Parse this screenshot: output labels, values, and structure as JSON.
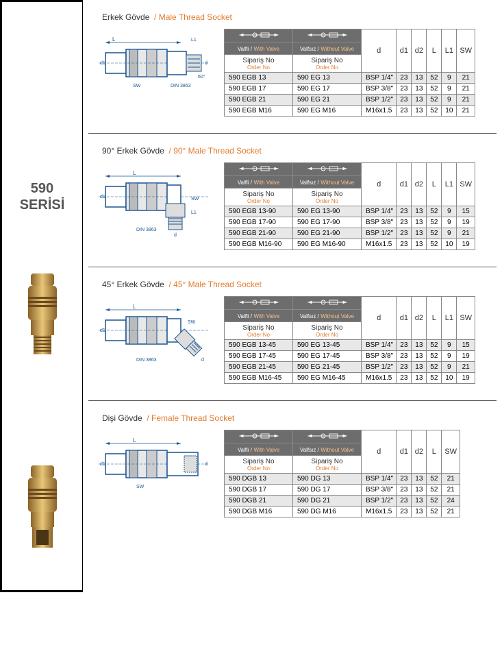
{
  "series": {
    "line1": "590",
    "line2": "SERİSİ"
  },
  "labels": {
    "valfli_tr": "Valfli /",
    "valfli_en": "With Valve",
    "valfsiz_tr": "Valfsız /",
    "valfsiz_en": "Without Valve",
    "siparis": "Sipariş No",
    "orderno": "Order No"
  },
  "sections": [
    {
      "title_tr": "Erkek Gövde",
      "title_en": "/ Male Thread Socket",
      "cols": [
        "d",
        "d1",
        "d2",
        "L",
        "L1",
        "SW"
      ],
      "rows": [
        {
          "a": "590 EGB 13",
          "b": "590 EG 13",
          "v": [
            "BSP 1/4''",
            "23",
            "13",
            "52",
            "9",
            "21"
          ],
          "shade": true
        },
        {
          "a": "590 EGB 17",
          "b": "590 EG 17",
          "v": [
            "BSP 3/8''",
            "23",
            "13",
            "52",
            "9",
            "21"
          ],
          "shade": false
        },
        {
          "a": "590 EGB 21",
          "b": "590 EG 21",
          "v": [
            "BSP 1/2''",
            "23",
            "13",
            "52",
            "9",
            "21"
          ],
          "shade": true
        },
        {
          "a": "590 EGB M16",
          "b": "590 EG M16",
          "v": [
            "M16x1.5",
            "23",
            "13",
            "52",
            "10",
            "21"
          ],
          "shade": false
        }
      ]
    },
    {
      "title_tr": "90° Erkek Gövde",
      "title_en": "/ 90° Male Thread Socket",
      "cols": [
        "d",
        "d1",
        "d2",
        "L",
        "L1",
        "SW"
      ],
      "rows": [
        {
          "a": "590 EGB 13-90",
          "b": "590 EG 13-90",
          "v": [
            "BSP 1/4''",
            "23",
            "13",
            "52",
            "9",
            "15"
          ],
          "shade": true
        },
        {
          "a": "590 EGB 17-90",
          "b": "590 EG 17-90",
          "v": [
            "BSP 3/8''",
            "23",
            "13",
            "52",
            "9",
            "19"
          ],
          "shade": false
        },
        {
          "a": "590 EGB 21-90",
          "b": "590 EG 21-90",
          "v": [
            "BSP 1/2''",
            "23",
            "13",
            "52",
            "9",
            "21"
          ],
          "shade": true
        },
        {
          "a": "590 EGB M16-90",
          "b": "590 EG M16-90",
          "v": [
            "M16x1.5",
            "23",
            "13",
            "52",
            "10",
            "19"
          ],
          "shade": false
        }
      ]
    },
    {
      "title_tr": "45° Erkek Gövde",
      "title_en": "/ 45° Male Thread Socket",
      "cols": [
        "d",
        "d1",
        "d2",
        "L",
        "L1",
        "SW"
      ],
      "rows": [
        {
          "a": "590 EGB 13-45",
          "b": "590 EG 13-45",
          "v": [
            "BSP 1/4''",
            "23",
            "13",
            "52",
            "9",
            "15"
          ],
          "shade": true
        },
        {
          "a": "590 EGB 17-45",
          "b": "590 EG 17-45",
          "v": [
            "BSP 3/8''",
            "23",
            "13",
            "52",
            "9",
            "19"
          ],
          "shade": false
        },
        {
          "a": "590 EGB 21-45",
          "b": "590 EG 21-45",
          "v": [
            "BSP 1/2''",
            "23",
            "13",
            "52",
            "9",
            "21"
          ],
          "shade": true
        },
        {
          "a": "590 EGB M16-45",
          "b": "590 EG M16-45",
          "v": [
            "M16x1.5",
            "23",
            "13",
            "52",
            "10",
            "19"
          ],
          "shade": false
        }
      ]
    },
    {
      "title_tr": "Dişi Gövde",
      "title_en": "/ Female Thread Socket",
      "cols": [
        "d",
        "d1",
        "d2",
        "L",
        "SW"
      ],
      "rows": [
        {
          "a": "590 DGB 13",
          "b": "590 DG 13",
          "v": [
            "BSP 1/4''",
            "23",
            "13",
            "52",
            "21"
          ],
          "shade": true
        },
        {
          "a": "590 DGB 17",
          "b": "590 DG 17",
          "v": [
            "BSP 3/8''",
            "23",
            "13",
            "52",
            "21"
          ],
          "shade": false
        },
        {
          "a": "590 DGB 21",
          "b": "590 DG 21",
          "v": [
            "BSP 1/2''",
            "23",
            "13",
            "52",
            "24"
          ],
          "shade": true
        },
        {
          "a": "590 DGB M16",
          "b": "590 DG M16",
          "v": [
            "M16x1.5",
            "23",
            "13",
            "52",
            "21"
          ],
          "shade": false
        }
      ]
    }
  ]
}
